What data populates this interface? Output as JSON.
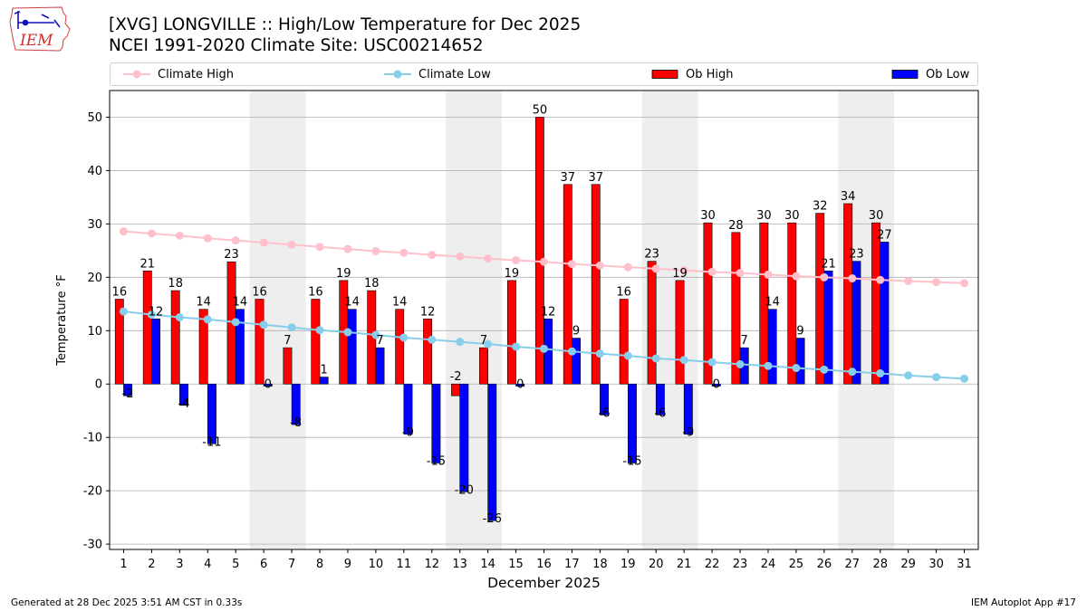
{
  "titles": {
    "line1": "[XVG] LONGVILLE :: High/Low Temperature for Dec 2025",
    "line2": "NCEI 1991-2020 Climate Site: USC00214652"
  },
  "logo": {
    "text": "IEM",
    "colors": {
      "state": "#d04040",
      "text": "#d03030",
      "weather": "#1010c0"
    }
  },
  "legend": {
    "climate_high": "Climate High",
    "climate_low": "Climate Low",
    "ob_high": "Ob High",
    "ob_low": "Ob Low"
  },
  "footer": {
    "left": "Generated at 28 Dec 2025 3:51 AM CST in 0.33s",
    "right": "IEM Autoplot App #17"
  },
  "colors": {
    "ob_high": "#ff0000",
    "ob_low": "#0000ff",
    "climate_high": "#ffc0cb",
    "climate_low": "#87ceeb",
    "weekend_shade": "#eeeeee",
    "grid": "#b0b0b0"
  },
  "chart_data": {
    "type": "bar",
    "xlabel": "December 2025",
    "ylabel": "Temperature °F",
    "ylim": [
      -31,
      55
    ],
    "yticks": [
      -30,
      -20,
      -10,
      0,
      10,
      20,
      30,
      40,
      50
    ],
    "xlim": [
      0.5,
      31.5
    ],
    "grid": "horizontal",
    "legend_position": "top",
    "days": [
      1,
      2,
      3,
      4,
      5,
      6,
      7,
      8,
      9,
      10,
      11,
      12,
      13,
      14,
      15,
      16,
      17,
      18,
      19,
      20,
      21,
      22,
      23,
      24,
      25,
      26,
      27,
      28,
      29,
      30,
      31
    ],
    "shaded_days": [
      [
        6,
        7
      ],
      [
        13,
        14
      ],
      [
        20,
        21
      ],
      [
        27,
        28
      ]
    ],
    "series": [
      {
        "name": "Ob High",
        "kind": "bar",
        "values": [
          16,
          21,
          18,
          14,
          23,
          16,
          7,
          16,
          19,
          18,
          14,
          12,
          -2,
          7,
          19,
          50,
          37,
          37,
          16,
          23,
          19,
          30,
          28,
          30,
          30,
          32,
          34,
          30
        ],
        "exact": [
          15.9,
          21.2,
          17.5,
          14.0,
          22.9,
          15.9,
          6.8,
          15.9,
          19.4,
          17.5,
          14.0,
          12.2,
          -2.2,
          6.8,
          19.4,
          50.0,
          37.4,
          37.4,
          15.9,
          23.0,
          19.4,
          30.2,
          28.4,
          30.2,
          30.2,
          32.0,
          33.8,
          30.2
        ]
      },
      {
        "name": "Ob Low",
        "kind": "bar",
        "values": [
          -2,
          12,
          -4,
          -11,
          14,
          0,
          -8,
          1,
          14,
          7,
          -9,
          -15,
          -20,
          -26,
          0,
          12,
          9,
          -6,
          -15,
          -6,
          -9,
          0,
          7,
          14,
          9,
          21,
          23,
          27
        ],
        "exact": [
          -2.2,
          12.2,
          -4.0,
          -11.2,
          14.0,
          -0.4,
          -7.6,
          1.3,
          14.0,
          6.8,
          -9.4,
          -14.8,
          -20.2,
          -25.6,
          -0.4,
          12.2,
          8.6,
          -5.8,
          -14.8,
          -5.8,
          -9.4,
          -0.4,
          6.8,
          14.0,
          8.6,
          21.2,
          23.0,
          26.6
        ]
      },
      {
        "name": "Climate High",
        "kind": "line",
        "values": [
          28.6,
          28.2,
          27.8,
          27.3,
          26.9,
          26.5,
          26.1,
          25.7,
          25.3,
          24.9,
          24.6,
          24.2,
          23.9,
          23.5,
          23.2,
          22.9,
          22.5,
          22.2,
          21.9,
          21.6,
          21.3,
          21.0,
          20.8,
          20.5,
          20.2,
          20.0,
          19.8,
          19.5,
          19.3,
          19.1,
          18.9
        ]
      },
      {
        "name": "Climate Low",
        "kind": "line",
        "values": [
          13.6,
          13.0,
          12.5,
          12.1,
          11.6,
          11.1,
          10.6,
          10.1,
          9.7,
          9.2,
          8.7,
          8.3,
          7.9,
          7.5,
          7.0,
          6.6,
          6.1,
          5.7,
          5.3,
          4.8,
          4.5,
          4.1,
          3.7,
          3.4,
          3.0,
          2.7,
          2.3,
          2.0,
          1.6,
          1.3,
          1.0
        ]
      }
    ]
  }
}
